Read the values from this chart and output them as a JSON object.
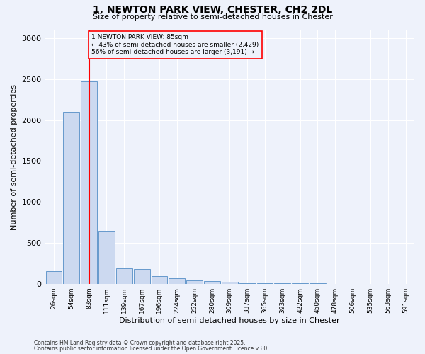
{
  "title_line1": "1, NEWTON PARK VIEW, CHESTER, CH2 2DL",
  "title_line2": "Size of property relative to semi-detached houses in Chester",
  "xlabel": "Distribution of semi-detached houses by size in Chester",
  "ylabel": "Number of semi-detached properties",
  "bin_labels": [
    "26sqm",
    "54sqm",
    "83sqm",
    "111sqm",
    "139sqm",
    "167sqm",
    "196sqm",
    "224sqm",
    "252sqm",
    "280sqm",
    "309sqm",
    "337sqm",
    "365sqm",
    "393sqm",
    "422sqm",
    "450sqm",
    "478sqm",
    "506sqm",
    "535sqm",
    "563sqm",
    "591sqm"
  ],
  "bar_values": [
    155,
    2100,
    2470,
    650,
    185,
    175,
    90,
    65,
    40,
    30,
    20,
    5,
    5,
    3,
    2,
    2,
    1,
    1,
    1,
    0,
    0
  ],
  "bar_color": "#ccd9f0",
  "bar_edge_color": "#6699cc",
  "property_size": 85,
  "property_bin_index": 2,
  "smaller_pct": 43,
  "smaller_count": 2429,
  "larger_pct": 56,
  "larger_count": 3191,
  "ylim": [
    0,
    3100
  ],
  "yticks": [
    0,
    500,
    1000,
    1500,
    2000,
    2500,
    3000
  ],
  "footnote1": "Contains HM Land Registry data © Crown copyright and database right 2025.",
  "footnote2": "Contains public sector information licensed under the Open Government Licence v3.0.",
  "bg_color": "#eef2fb"
}
